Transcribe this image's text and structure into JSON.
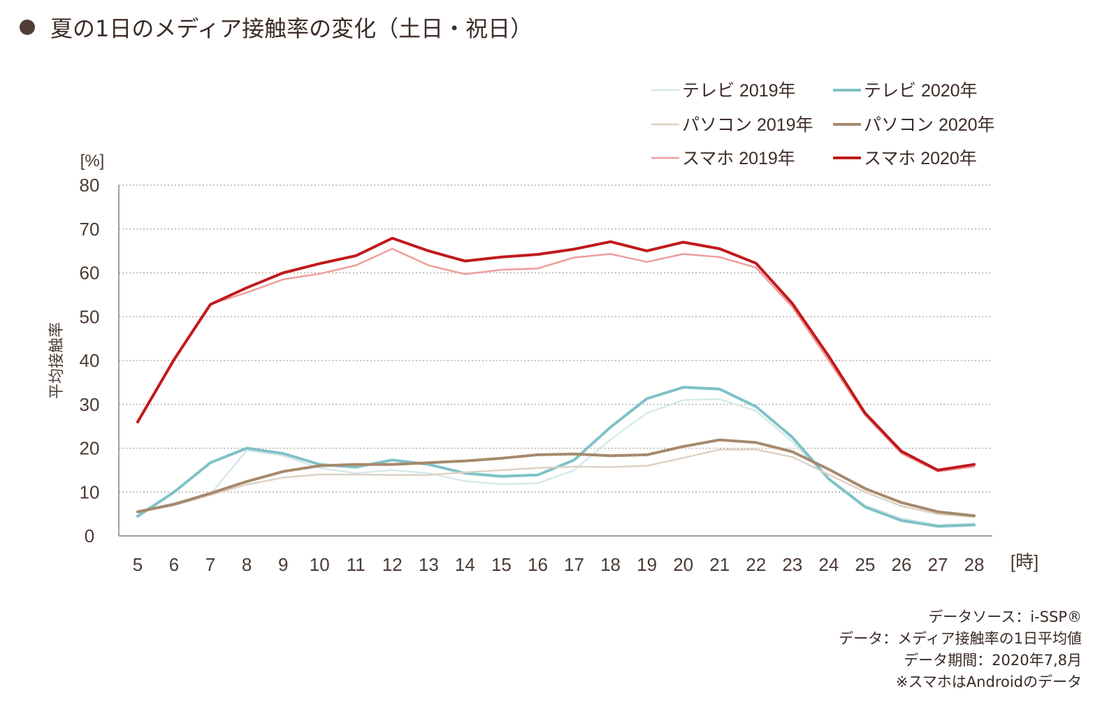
{
  "title": "夏の1日のメディア接触率の変化（土日・祝日）",
  "chart_data": {
    "type": "line",
    "title": "夏の1日のメディア接触率の変化（土日・祝日）",
    "ylabel": "平均接触率",
    "y_unit": "[%]",
    "x_unit": "[時]",
    "ylim": [
      0,
      80
    ],
    "yticks": [
      0,
      10,
      20,
      30,
      40,
      50,
      60,
      70,
      80
    ],
    "grid": "horizontal-dotted",
    "legend_position": "top-right",
    "x": [
      5,
      6,
      7,
      8,
      9,
      10,
      11,
      12,
      13,
      14,
      15,
      16,
      17,
      18,
      19,
      20,
      21,
      22,
      23,
      24,
      25,
      26,
      27,
      28
    ],
    "series": [
      {
        "name": "テレビ 2019年",
        "color": "#d6e9ea",
        "width": 2.5,
        "values": [
          5.5,
          7.5,
          9.5,
          19.5,
          18.3,
          15.5,
          14.3,
          15.0,
          14.3,
          12.5,
          11.8,
          12.0,
          15.0,
          22.0,
          28.0,
          31.0,
          31.2,
          28.5,
          21.5,
          13.0,
          7.0,
          4.0,
          2.5,
          2.8
        ]
      },
      {
        "name": "テレビ 2020年",
        "color": "#7fc2c7",
        "width": 4,
        "values": [
          4.5,
          10.0,
          16.7,
          20.0,
          18.8,
          16.3,
          15.7,
          17.3,
          16.3,
          14.3,
          13.6,
          13.9,
          17.3,
          24.8,
          31.3,
          33.9,
          33.5,
          29.5,
          22.5,
          13.0,
          6.6,
          3.5,
          2.2,
          2.5
        ]
      },
      {
        "name": "パソコン 2019年",
        "color": "#ddd2c5",
        "width": 2.5,
        "values": [
          5.5,
          7.0,
          9.3,
          11.7,
          13.3,
          14.0,
          14.0,
          13.9,
          13.9,
          14.5,
          15.0,
          15.5,
          15.8,
          15.7,
          16.0,
          17.8,
          19.7,
          19.7,
          18.0,
          14.0,
          10.0,
          6.8,
          5.0,
          4.3
        ]
      },
      {
        "name": "パソコン 2020年",
        "color": "#a6896d",
        "width": 4,
        "values": [
          5.5,
          7.2,
          9.7,
          12.4,
          14.7,
          16.0,
          16.3,
          16.3,
          16.7,
          17.1,
          17.7,
          18.5,
          18.7,
          18.3,
          18.5,
          20.4,
          21.9,
          21.3,
          19.2,
          15.2,
          10.8,
          7.6,
          5.5,
          4.6
        ]
      },
      {
        "name": "スマホ 2019年",
        "color": "#ee9e9b",
        "width": 2.5,
        "values": [
          26.0,
          40.0,
          52.8,
          55.5,
          58.5,
          59.8,
          61.7,
          65.5,
          61.7,
          59.7,
          60.7,
          61.0,
          63.5,
          64.3,
          62.5,
          64.3,
          63.6,
          61.2,
          52.2,
          40.0,
          27.5,
          18.8,
          14.7,
          15.8
        ]
      },
      {
        "name": "スマホ 2020年",
        "color": "#c0191c",
        "width": 4,
        "values": [
          26.0,
          40.2,
          52.8,
          56.6,
          60.0,
          62.1,
          63.9,
          67.9,
          65.0,
          62.7,
          63.6,
          64.2,
          65.4,
          67.1,
          65.0,
          67.0,
          65.5,
          62.2,
          53.0,
          41.0,
          28.0,
          19.3,
          15.0,
          16.3
        ]
      }
    ]
  },
  "notes": [
    "データソース：i-SSP®",
    "データ：メディア接触率の1日平均値",
    "データ期間：2020年7,8月",
    "※スマホはAndroidのデータ"
  ]
}
